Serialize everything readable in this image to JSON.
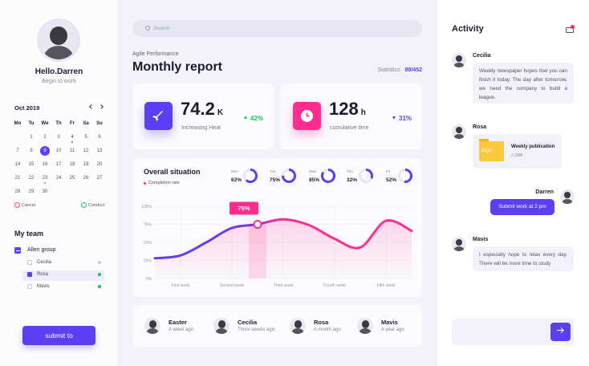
{
  "profile": {
    "greeting": "Hello.Darren",
    "status": "Begin to work"
  },
  "calendar": {
    "month": "Oct 2019",
    "weekdays": [
      "Mo",
      "Tu",
      "We",
      "Th",
      "Fr",
      "Sa",
      "Su"
    ],
    "weeks": [
      [
        null,
        1,
        2,
        3,
        4,
        5,
        6
      ],
      [
        7,
        8,
        9,
        10,
        11,
        12,
        13
      ],
      [
        14,
        15,
        16,
        17,
        18,
        19,
        20
      ],
      [
        21,
        22,
        23,
        24,
        25,
        26,
        27
      ],
      [
        28,
        29,
        30
      ]
    ],
    "selected": 9,
    "legend": {
      "cancel": "Cancel",
      "conduct": "Conduct"
    }
  },
  "team": {
    "title": "My team",
    "group": "Allen group",
    "members": [
      "Cecilia",
      "Rosa",
      "Mavis"
    ]
  },
  "submit": "submit to",
  "search": "Search",
  "report": {
    "eyebrow": "Agile Performance",
    "title": "Monthly report",
    "stats_label": "Statistics",
    "stats": "89/452"
  },
  "kpis": [
    {
      "value": 74.2,
      "unit": "K",
      "label": "Increasing Heat",
      "change": "42%",
      "trend": "up",
      "color": "#5b3ff0"
    },
    {
      "value": 128,
      "unit": "h",
      "label": "cumulative time",
      "change": "31%",
      "trend": "down",
      "color": "#ff2d8f"
    }
  ],
  "overall": {
    "title": "Overall situation",
    "legend": "Completion rate",
    "days": [
      {
        "day": "Mon",
        "value": 62,
        "value_label": "62%"
      },
      {
        "day": "Tue",
        "value": 75,
        "value_label": "75%"
      },
      {
        "day": "Wed",
        "value": 85,
        "value_label": "85%"
      },
      {
        "day": "Thu",
        "value": 32,
        "value_label": "32%"
      },
      {
        "day": "Fri",
        "value": 52,
        "value_label": "52%"
      }
    ],
    "chart": {
      "type": "line",
      "x": [
        0.5,
        1,
        1.5,
        2,
        2.5,
        3,
        3.5,
        4,
        4.5,
        5,
        5.5
      ],
      "values": [
        28,
        32,
        50,
        70,
        75,
        82,
        74,
        55,
        43,
        80,
        66
      ],
      "xlim": [
        0.5,
        5.5
      ],
      "ylim": [
        0,
        100
      ],
      "yticks": [
        {
          "value": 0,
          "label": "0%"
        },
        {
          "value": 25,
          "label": "25%"
        },
        {
          "value": 50,
          "label": "50%"
        },
        {
          "value": 75,
          "label": "75%"
        },
        {
          "value": 100,
          "label": "100%"
        }
      ],
      "xticks": [
        {
          "value": 1,
          "label": "First week"
        },
        {
          "value": 2,
          "label": "Second week"
        },
        {
          "value": 3,
          "label": "Third week"
        },
        {
          "value": 4,
          "label": "Fourth week"
        },
        {
          "value": 5,
          "label": "Fifth week"
        }
      ],
      "highlight": {
        "x": 2.5,
        "value": 75,
        "label": "75%"
      }
    }
  },
  "recent": [
    {
      "name": "Easter",
      "time": "A week ago"
    },
    {
      "name": "Cecilia",
      "time": "Three weeks ago"
    },
    {
      "name": "Rosa",
      "time": "A month ago"
    },
    {
      "name": "Mavis",
      "time": "A year ago"
    }
  ],
  "activity": {
    "title": "Activity",
    "messages": [
      {
        "name": "Cecilia",
        "text": "Weekly newspaper hopes that you can finish it today. The day after tomorrow, we need the company to build a league."
      },
      {
        "name": "Rosa",
        "file": {
          "type": "PDF",
          "name": "Weekly publication",
          "size": "2.2MB"
        }
      },
      {
        "name": "Darren",
        "text": "Submit work at 2 pm"
      },
      {
        "name": "Mavis",
        "text": "I especially hope to relax every day. There will be more time to study"
      }
    ]
  }
}
